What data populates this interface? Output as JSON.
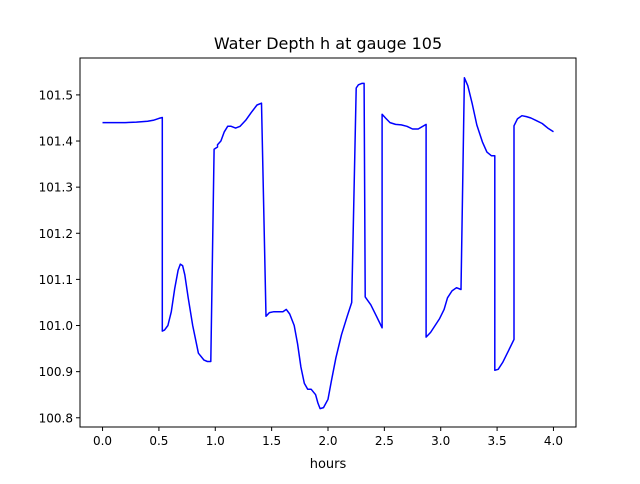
{
  "chart_data": {
    "type": "line",
    "title": "Water Depth h at gauge 105",
    "xlabel": "hours",
    "ylabel": "",
    "xlim": [
      -0.2,
      4.2
    ],
    "ylim": [
      100.78,
      101.58
    ],
    "xticks": [
      0.0,
      0.5,
      1.0,
      1.5,
      2.0,
      2.5,
      3.0,
      3.5,
      4.0
    ],
    "xtick_labels": [
      "0.0",
      "0.5",
      "1.0",
      "1.5",
      "2.0",
      "2.5",
      "3.0",
      "3.5",
      "4.0"
    ],
    "yticks": [
      100.8,
      100.9,
      101.0,
      101.1,
      101.2,
      101.3,
      101.4,
      101.5
    ],
    "ytick_labels": [
      "100.8",
      "100.9",
      "101.0",
      "101.1",
      "101.2",
      "101.3",
      "101.4",
      "101.5"
    ],
    "grid": false,
    "series": [
      {
        "color": "#0000ff",
        "x": [
          0.0,
          0.1,
          0.2,
          0.3,
          0.4,
          0.45,
          0.5,
          0.53,
          0.53,
          0.55,
          0.58,
          0.61,
          0.64,
          0.67,
          0.69,
          0.71,
          0.73,
          0.76,
          0.8,
          0.85,
          0.9,
          0.93,
          0.96,
          0.99,
          1.02,
          1.02,
          1.05,
          1.08,
          1.11,
          1.14,
          1.18,
          1.22,
          1.27,
          1.32,
          1.37,
          1.41,
          1.45,
          1.45,
          1.48,
          1.52,
          1.56,
          1.6,
          1.63,
          1.66,
          1.7,
          1.73,
          1.76,
          1.79,
          1.82,
          1.85,
          1.89,
          1.91,
          1.93,
          1.96,
          2.0,
          2.03,
          2.07,
          2.12,
          2.17,
          2.21,
          2.25,
          2.25,
          2.27,
          2.3,
          2.32,
          2.33,
          2.33,
          2.38,
          2.43,
          2.48,
          2.48,
          2.51,
          2.55,
          2.6,
          2.65,
          2.7,
          2.75,
          2.8,
          2.87,
          2.87,
          2.91,
          2.95,
          2.99,
          3.03,
          3.06,
          3.1,
          3.14,
          3.18,
          3.21,
          3.21,
          3.24,
          3.28,
          3.32,
          3.37,
          3.41,
          3.45,
          3.48,
          3.48,
          3.51,
          3.55,
          3.6,
          3.65,
          3.65,
          3.68,
          3.72,
          3.76,
          3.8,
          3.85,
          3.9,
          3.95,
          4.0
        ],
        "y": [
          101.44,
          101.44,
          101.44,
          101.441,
          101.443,
          101.445,
          101.449,
          101.451,
          100.988,
          100.99,
          101.0,
          101.03,
          101.08,
          101.12,
          101.133,
          101.13,
          101.11,
          101.06,
          101.0,
          100.94,
          100.925,
          100.922,
          100.922,
          101.382,
          101.387,
          101.392,
          101.4,
          101.42,
          101.432,
          101.432,
          101.428,
          101.432,
          101.445,
          101.462,
          101.478,
          101.482,
          101.02,
          101.02,
          101.028,
          101.03,
          101.03,
          101.03,
          101.035,
          101.025,
          101.0,
          100.96,
          100.91,
          100.875,
          100.862,
          100.862,
          100.85,
          100.832,
          100.82,
          100.822,
          100.84,
          100.88,
          100.93,
          100.98,
          101.02,
          101.05,
          101.515,
          101.515,
          101.522,
          101.525,
          101.525,
          101.062,
          101.062,
          101.045,
          101.02,
          100.995,
          101.458,
          101.45,
          101.44,
          101.436,
          101.435,
          101.432,
          101.426,
          101.426,
          101.436,
          100.975,
          100.985,
          101.0,
          101.015,
          101.035,
          101.06,
          101.075,
          101.082,
          101.078,
          101.537,
          101.537,
          101.52,
          101.48,
          101.435,
          101.398,
          101.376,
          101.368,
          101.368,
          100.903,
          100.905,
          100.92,
          100.945,
          100.97,
          101.433,
          101.448,
          101.455,
          101.453,
          101.45,
          101.444,
          101.438,
          101.428,
          101.42
        ]
      }
    ]
  }
}
